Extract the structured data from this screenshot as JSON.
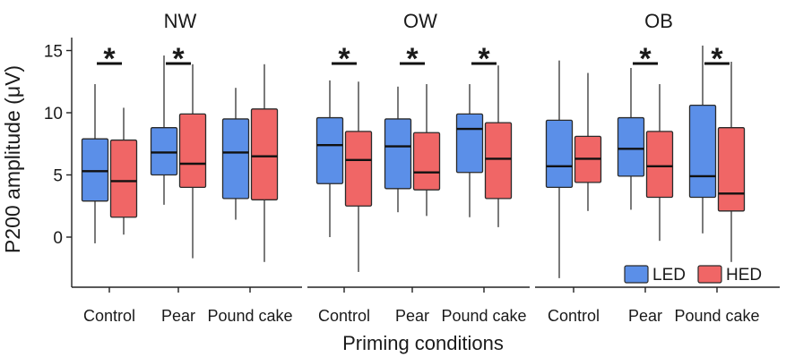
{
  "chart_data": {
    "type": "box",
    "ylabel": "P200 amplitude (μV)",
    "xlabel": "Priming conditions",
    "yticks": [
      0,
      5,
      10,
      15
    ],
    "ylim": [
      -4,
      16
    ],
    "categories": [
      "Control",
      "Pear",
      "Pound cake"
    ],
    "legend": {
      "placement": "bottom-right",
      "entries": [
        "LED",
        "HED"
      ]
    },
    "colors": {
      "LED": "#5b8fe8",
      "HED": "#f06666"
    },
    "significance_marker": "*",
    "panels": [
      {
        "title": "NW",
        "groups": [
          {
            "category": "Control",
            "significant": true,
            "LED": {
              "min": -0.5,
              "q1": 2.9,
              "median": 5.3,
              "q3": 7.9,
              "max": 12.3
            },
            "HED": {
              "min": 0.2,
              "q1": 1.6,
              "median": 4.5,
              "q3": 7.8,
              "max": 10.4
            }
          },
          {
            "category": "Pear",
            "significant": true,
            "LED": {
              "min": 2.6,
              "q1": 5.0,
              "median": 6.8,
              "q3": 8.8,
              "max": 14.6
            },
            "HED": {
              "min": -1.7,
              "q1": 4.0,
              "median": 5.9,
              "q3": 9.9,
              "max": 13.9
            }
          },
          {
            "category": "Pound cake",
            "significant": false,
            "LED": {
              "min": 1.4,
              "q1": 3.1,
              "median": 6.8,
              "q3": 9.5,
              "max": 12.0
            },
            "HED": {
              "min": -2.0,
              "q1": 3.0,
              "median": 6.5,
              "q3": 10.3,
              "max": 13.9
            }
          }
        ]
      },
      {
        "title": "OW",
        "groups": [
          {
            "category": "Control",
            "significant": true,
            "LED": {
              "min": 0.0,
              "q1": 4.3,
              "median": 7.4,
              "q3": 9.6,
              "max": 12.6
            },
            "HED": {
              "min": -2.8,
              "q1": 2.5,
              "median": 6.2,
              "q3": 8.5,
              "max": 12.5
            }
          },
          {
            "category": "Pear",
            "significant": true,
            "LED": {
              "min": 2.0,
              "q1": 3.9,
              "median": 7.3,
              "q3": 9.5,
              "max": 12.1
            },
            "HED": {
              "min": 1.7,
              "q1": 3.8,
              "median": 5.2,
              "q3": 8.4,
              "max": 12.3
            }
          },
          {
            "category": "Pound cake",
            "significant": true,
            "LED": {
              "min": 1.6,
              "q1": 5.2,
              "median": 8.7,
              "q3": 9.9,
              "max": 12.3
            },
            "HED": {
              "min": 0.8,
              "q1": 3.1,
              "median": 6.3,
              "q3": 9.2,
              "max": 13.8
            }
          }
        ]
      },
      {
        "title": "OB",
        "groups": [
          {
            "category": "Control",
            "significant": false,
            "LED": {
              "min": -3.3,
              "q1": 4.0,
              "median": 5.7,
              "q3": 9.4,
              "max": 14.2
            },
            "HED": {
              "min": 2.1,
              "q1": 4.4,
              "median": 6.3,
              "q3": 8.1,
              "max": 13.2
            }
          },
          {
            "category": "Pear",
            "significant": true,
            "LED": {
              "min": 2.2,
              "q1": 4.9,
              "median": 7.1,
              "q3": 9.6,
              "max": 13.6
            },
            "HED": {
              "min": -0.3,
              "q1": 3.2,
              "median": 5.7,
              "q3": 8.5,
              "max": 12.3
            }
          },
          {
            "category": "Pound cake",
            "significant": true,
            "LED": {
              "min": 0.3,
              "q1": 3.2,
              "median": 4.9,
              "q3": 10.6,
              "max": 15.4
            },
            "HED": {
              "min": -2.0,
              "q1": 2.1,
              "median": 3.5,
              "q3": 8.8,
              "max": 14.1
            }
          }
        ]
      }
    ]
  }
}
